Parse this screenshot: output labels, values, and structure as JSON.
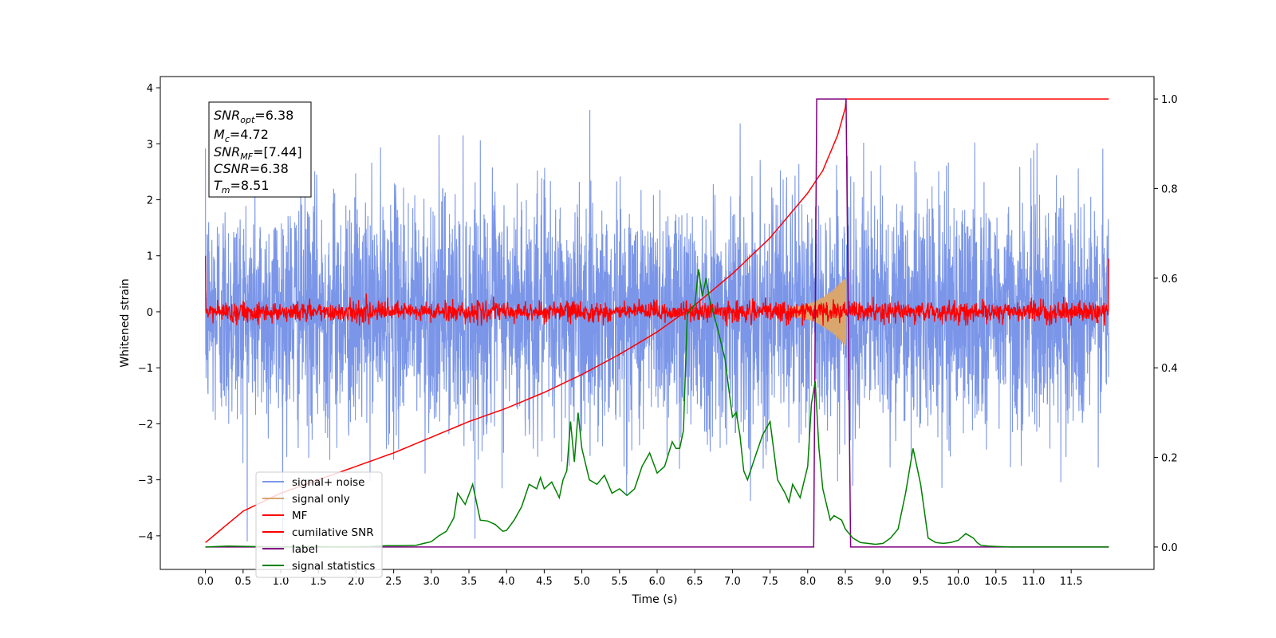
{
  "chart_data": {
    "type": "line",
    "title": "",
    "xlabel": "Time (s)",
    "ylabel": "Whitened strain",
    "xlim": [
      -0.6,
      12.6
    ],
    "ylim": [
      -4.6,
      4.2
    ],
    "y2lim": [
      -0.05,
      1.05
    ],
    "x_ticks": [
      "0.0",
      "0.5",
      "1.0",
      "1.5",
      "2.0",
      "2.5",
      "3.0",
      "3.5",
      "4.0",
      "4.5",
      "5.0",
      "5.5",
      "6.0",
      "6.5",
      "7.0",
      "7.5",
      "8.0",
      "8.5",
      "9.0",
      "9.5",
      "10.0",
      "10.5",
      "11.0",
      "11.5"
    ],
    "y_ticks": [
      "4",
      "3",
      "2",
      "1",
      "0",
      "−1",
      "−2",
      "−3",
      "−4"
    ],
    "y2_ticks": [
      "1.0",
      "0.8",
      "0.6",
      "0.4",
      "0.2",
      "0.0"
    ],
    "grid": false,
    "legend_placement": "lower-left",
    "info_box": {
      "snr_opt": {
        "base": "SNR",
        "sub": "opt",
        "value": "=6.38"
      },
      "mc": {
        "base": "M",
        "sub": "c",
        "value": "=4.72"
      },
      "snr_mf": {
        "base": "SNR",
        "sub": "MF",
        "value": "=[7.44]"
      },
      "csnr": {
        "base": "CSNR",
        "value": "=6.38"
      },
      "tm": {
        "base": "T",
        "sub": "m",
        "value": "=8.51"
      }
    },
    "series": [
      {
        "name": "signal+ noise",
        "axis": "left",
        "color": "#7b96e8",
        "description_range": [
          -4.1,
          3.8
        ]
      },
      {
        "name": "signal only",
        "axis": "left",
        "color": "#d9a66e",
        "envelope": {
          "t_start": 7.7,
          "t_end": 8.51,
          "max_amp": 0.55
        }
      },
      {
        "name": "MF",
        "axis": "left",
        "color": "#ff0000",
        "description_range": [
          -0.25,
          0.5
        ]
      },
      {
        "name": "cumilative SNR",
        "axis": "right",
        "color": "#ff0000",
        "x": [
          0.0,
          0.5,
          1.0,
          1.5,
          2.0,
          2.5,
          3.0,
          3.5,
          4.0,
          4.5,
          5.0,
          5.5,
          6.0,
          6.5,
          7.0,
          7.5,
          8.0,
          8.2,
          8.4,
          8.5,
          8.51,
          12.0
        ],
        "values": [
          0.01,
          0.08,
          0.12,
          0.15,
          0.18,
          0.21,
          0.245,
          0.28,
          0.31,
          0.345,
          0.385,
          0.43,
          0.48,
          0.54,
          0.61,
          0.69,
          0.79,
          0.84,
          0.92,
          0.98,
          1.0,
          1.0
        ]
      },
      {
        "name": "label",
        "axis": "right",
        "color": "#800080",
        "x": [
          0.0,
          8.08,
          8.12,
          8.51,
          8.57,
          12.0
        ],
        "values": [
          0.0,
          0.0,
          1.0,
          1.0,
          0.0,
          0.0
        ]
      },
      {
        "name": "signal statistics",
        "axis": "right",
        "color": "#008000",
        "x": [
          0.0,
          0.3,
          0.6,
          1.0,
          1.4,
          1.8,
          2.2,
          2.4,
          2.6,
          2.8,
          2.9,
          3.0,
          3.1,
          3.2,
          3.3,
          3.35,
          3.45,
          3.55,
          3.65,
          3.75,
          3.85,
          3.95,
          4.0,
          4.1,
          4.2,
          4.3,
          4.4,
          4.45,
          4.5,
          4.6,
          4.7,
          4.75,
          4.8,
          4.85,
          4.9,
          4.95,
          5.0,
          5.1,
          5.2,
          5.3,
          5.4,
          5.5,
          5.6,
          5.7,
          5.8,
          5.9,
          6.0,
          6.1,
          6.2,
          6.25,
          6.3,
          6.35,
          6.4,
          6.5,
          6.55,
          6.6,
          6.65,
          6.7,
          6.75,
          6.8,
          6.9,
          7.0,
          7.05,
          7.1,
          7.15,
          7.2,
          7.3,
          7.4,
          7.5,
          7.6,
          7.7,
          7.75,
          7.8,
          7.9,
          8.0,
          8.05,
          8.1,
          8.15,
          8.2,
          8.3,
          8.35,
          8.45,
          8.5,
          8.6,
          8.7,
          8.9,
          9.0,
          9.1,
          9.2,
          9.3,
          9.4,
          9.5,
          9.55,
          9.6,
          9.7,
          9.8,
          9.9,
          10.0,
          10.1,
          10.2,
          10.25,
          10.3,
          10.4,
          10.5,
          10.7,
          11.0,
          11.5,
          12.0
        ],
        "values": [
          0.0,
          0.002,
          0.001,
          0.0,
          0.001,
          0.0,
          0.001,
          0.003,
          0.003,
          0.004,
          0.008,
          0.012,
          0.025,
          0.035,
          0.065,
          0.12,
          0.095,
          0.14,
          0.06,
          0.058,
          0.05,
          0.035,
          0.037,
          0.06,
          0.09,
          0.14,
          0.13,
          0.155,
          0.13,
          0.145,
          0.11,
          0.15,
          0.17,
          0.28,
          0.19,
          0.3,
          0.22,
          0.15,
          0.14,
          0.16,
          0.12,
          0.13,
          0.115,
          0.13,
          0.18,
          0.21,
          0.165,
          0.18,
          0.235,
          0.22,
          0.22,
          0.26,
          0.52,
          0.54,
          0.62,
          0.56,
          0.6,
          0.55,
          0.52,
          0.49,
          0.42,
          0.29,
          0.3,
          0.25,
          0.17,
          0.15,
          0.2,
          0.25,
          0.28,
          0.15,
          0.12,
          0.1,
          0.14,
          0.11,
          0.18,
          0.32,
          0.37,
          0.22,
          0.13,
          0.06,
          0.07,
          0.06,
          0.04,
          0.02,
          0.01,
          0.006,
          0.008,
          0.02,
          0.04,
          0.12,
          0.22,
          0.14,
          0.08,
          0.02,
          0.01,
          0.008,
          0.01,
          0.015,
          0.03,
          0.02,
          0.01,
          0.004,
          0.002,
          0.001,
          0.0,
          0.0,
          0.0,
          0.0
        ]
      }
    ]
  }
}
